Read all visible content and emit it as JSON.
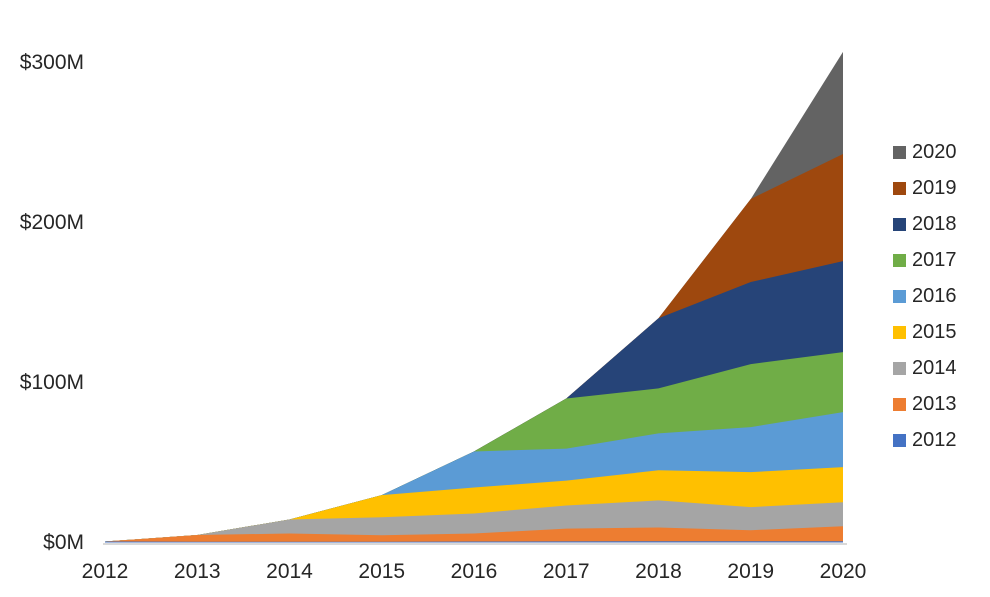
{
  "chart_data": {
    "type": "area",
    "variant": "stacked",
    "title": "",
    "xlabel": "",
    "ylabel": "",
    "x_axis": {
      "tick_labels": [
        "2012",
        "2013",
        "2014",
        "2015",
        "2016",
        "2017",
        "2018",
        "2019",
        "2020"
      ]
    },
    "y_axis": {
      "tick_labels": [
        "$0M",
        "$100M",
        "$200M",
        "$300M"
      ],
      "tick_values_m": [
        0,
        100,
        200,
        300
      ],
      "ylim_m": [
        0,
        312
      ],
      "grid": false
    },
    "axis_line_color": "#D9D9D9",
    "text_color": "#262626",
    "background_color": "#FFFFFF",
    "legend_position": "right",
    "legend": [
      {
        "label": "2020",
        "color": "#636363"
      },
      {
        "label": "2019",
        "color": "#9E480E"
      },
      {
        "label": "2018",
        "color": "#264478"
      },
      {
        "label": "2017",
        "color": "#70AD47"
      },
      {
        "label": "2016",
        "color": "#5B9BD5"
      },
      {
        "label": "2015",
        "color": "#FFC000"
      },
      {
        "label": "2014",
        "color": "#A5A5A5"
      },
      {
        "label": "2013",
        "color": "#ED7D31"
      },
      {
        "label": "2012",
        "color": "#4472C4"
      }
    ],
    "series_note": "values in $M per x-axis year, stacked bottom-to-top in listed order; estimated from pixel measurements",
    "series": [
      {
        "name": "2012",
        "color": "#4472C4",
        "values": [
          0.6,
          0.5,
          0.5,
          0.5,
          0.6,
          0.7,
          0.8,
          0.8,
          0.8
        ]
      },
      {
        "name": "2013",
        "color": "#ED7D31",
        "values": [
          0,
          4.2,
          5.1,
          4.0,
          5.0,
          8.0,
          8.6,
          6.9,
          9.4
        ]
      },
      {
        "name": "2014",
        "color": "#A5A5A5",
        "values": [
          0,
          0,
          8.8,
          11.3,
          12.5,
          14.4,
          16.9,
          14.4,
          15.0
        ]
      },
      {
        "name": "2015",
        "color": "#FFC000",
        "values": [
          0,
          0,
          0,
          13.8,
          16.3,
          15.6,
          18.8,
          21.9,
          21.9
        ]
      },
      {
        "name": "2016",
        "color": "#5B9BD5",
        "values": [
          0,
          0,
          0,
          0,
          22.5,
          20.0,
          23.1,
          28.1,
          34.4
        ]
      },
      {
        "name": "2017",
        "color": "#70AD47",
        "values": [
          0,
          0,
          0,
          0,
          0,
          31.3,
          28.1,
          39.4,
          37.5
        ]
      },
      {
        "name": "2018",
        "color": "#264478",
        "values": [
          0,
          0,
          0,
          0,
          0,
          0,
          43.8,
          51.3,
          56.9
        ]
      },
      {
        "name": "2019",
        "color": "#9E480E",
        "values": [
          0,
          0,
          0,
          0,
          0,
          0,
          0,
          51.9,
          66.9
        ]
      },
      {
        "name": "2020",
        "color": "#636363",
        "values": [
          0,
          0,
          0,
          0,
          0,
          0,
          0,
          0,
          63.8
        ]
      }
    ],
    "stack_totals_m": [
      0.6,
      4.7,
      14.4,
      29.6,
      56.9,
      90.0,
      140.1,
      214.7,
      306.6
    ]
  }
}
